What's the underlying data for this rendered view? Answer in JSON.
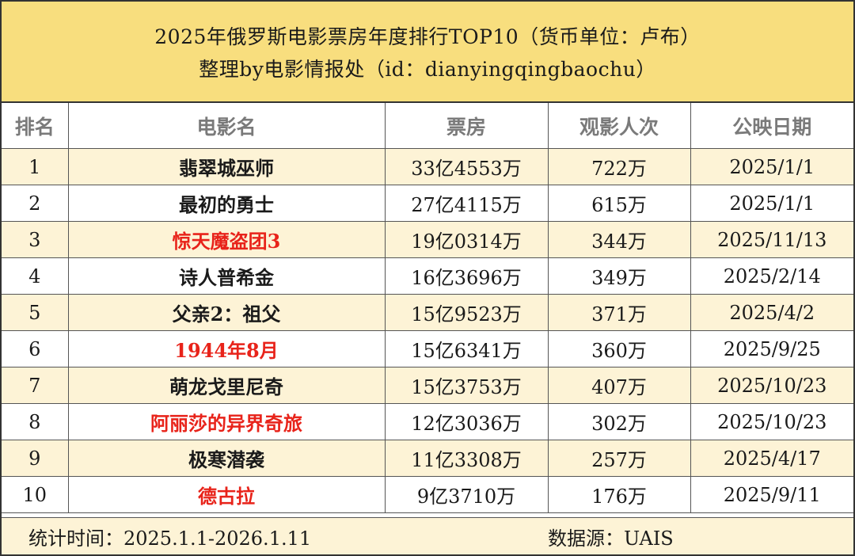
{
  "title": {
    "line1": "2025年俄罗斯电影票房年度排行TOP10（货币单位：卢布）",
    "line2": "整理by电影情报处（id：dianyingqingbaochu）"
  },
  "table": {
    "headers": [
      "排名",
      "电影名",
      "票房",
      "观影人次",
      "公映日期"
    ],
    "rows": [
      {
        "rank": "1",
        "name": "翡翠城巫师",
        "box_office": "33亿4553万",
        "admissions": "722万",
        "release": "2025/1/1",
        "highlight": false
      },
      {
        "rank": "2",
        "name": "最初的勇士",
        "box_office": "27亿4115万",
        "admissions": "615万",
        "release": "2025/1/1",
        "highlight": false
      },
      {
        "rank": "3",
        "name": "惊天魔盗团3",
        "box_office": "19亿0314万",
        "admissions": "344万",
        "release": "2025/11/13",
        "highlight": true
      },
      {
        "rank": "4",
        "name": "诗人普希金",
        "box_office": "16亿3696万",
        "admissions": "349万",
        "release": "2025/2/14",
        "highlight": false
      },
      {
        "rank": "5",
        "name": "父亲2：祖父",
        "box_office": "15亿9523万",
        "admissions": "371万",
        "release": "2025/4/2",
        "highlight": false
      },
      {
        "rank": "6",
        "name": "1944年8月",
        "box_office": "15亿6341万",
        "admissions": "360万",
        "release": "2025/9/25",
        "highlight": true
      },
      {
        "rank": "7",
        "name": "萌龙戈里尼奇",
        "box_office": "15亿3753万",
        "admissions": "407万",
        "release": "2025/10/23",
        "highlight": false
      },
      {
        "rank": "8",
        "name": "阿丽莎的异界奇旅",
        "box_office": "12亿3036万",
        "admissions": "302万",
        "release": "2025/10/23",
        "highlight": true
      },
      {
        "rank": "9",
        "name": "极寒潜袭",
        "box_office": "11亿3308万",
        "admissions": "257万",
        "release": "2025/4/17",
        "highlight": false
      },
      {
        "rank": "10",
        "name": "德古拉",
        "box_office": "9亿3710万",
        "admissions": "176万",
        "release": "2025/9/11",
        "highlight": true
      }
    ]
  },
  "footer": {
    "period": "统计时间：2025.1.1-2026.1.11",
    "source": "数据源：UAIS"
  },
  "colors": {
    "title_band": "#f8de7e",
    "odd_row": "#fdf3d6",
    "highlight_text": "#e8231a",
    "header_text": "#7a7a7a"
  }
}
